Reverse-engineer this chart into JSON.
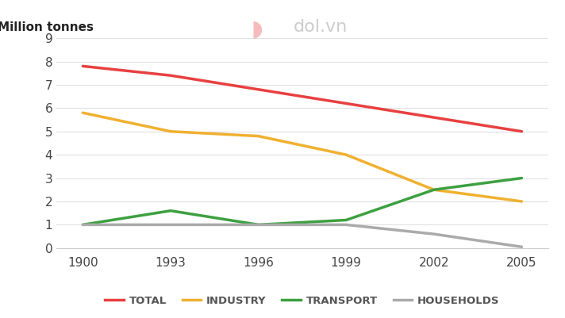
{
  "x_positions": [
    0,
    1,
    2,
    3,
    4,
    5
  ],
  "total": [
    7.8,
    7.4,
    6.8,
    6.2,
    5.6,
    5.0
  ],
  "industry": [
    5.8,
    5.0,
    4.8,
    4.0,
    2.5,
    2.0
  ],
  "transport": [
    1.0,
    1.6,
    1.0,
    1.2,
    2.5,
    3.0
  ],
  "households": [
    1.0,
    1.0,
    1.0,
    1.0,
    0.6,
    0.05
  ],
  "colors": {
    "total": "#e84040",
    "industry": "#f0b030",
    "transport": "#3da040",
    "households": "#aaaaaa"
  },
  "ylabel": "Million tonnes",
  "ylim": [
    0,
    9
  ],
  "yticks": [
    0,
    1,
    2,
    3,
    4,
    5,
    6,
    7,
    8,
    9
  ],
  "xtick_labels": [
    "1900",
    "1993",
    "1996",
    "1999",
    "2002",
    "2005"
  ],
  "legend_labels": [
    "TOTAL",
    "INDUSTRY",
    "TRANSPORT",
    "HOUSEHOLDS"
  ],
  "line_width": 2.5,
  "background_color": "#ffffff",
  "grid_color": "#e0e0e0"
}
